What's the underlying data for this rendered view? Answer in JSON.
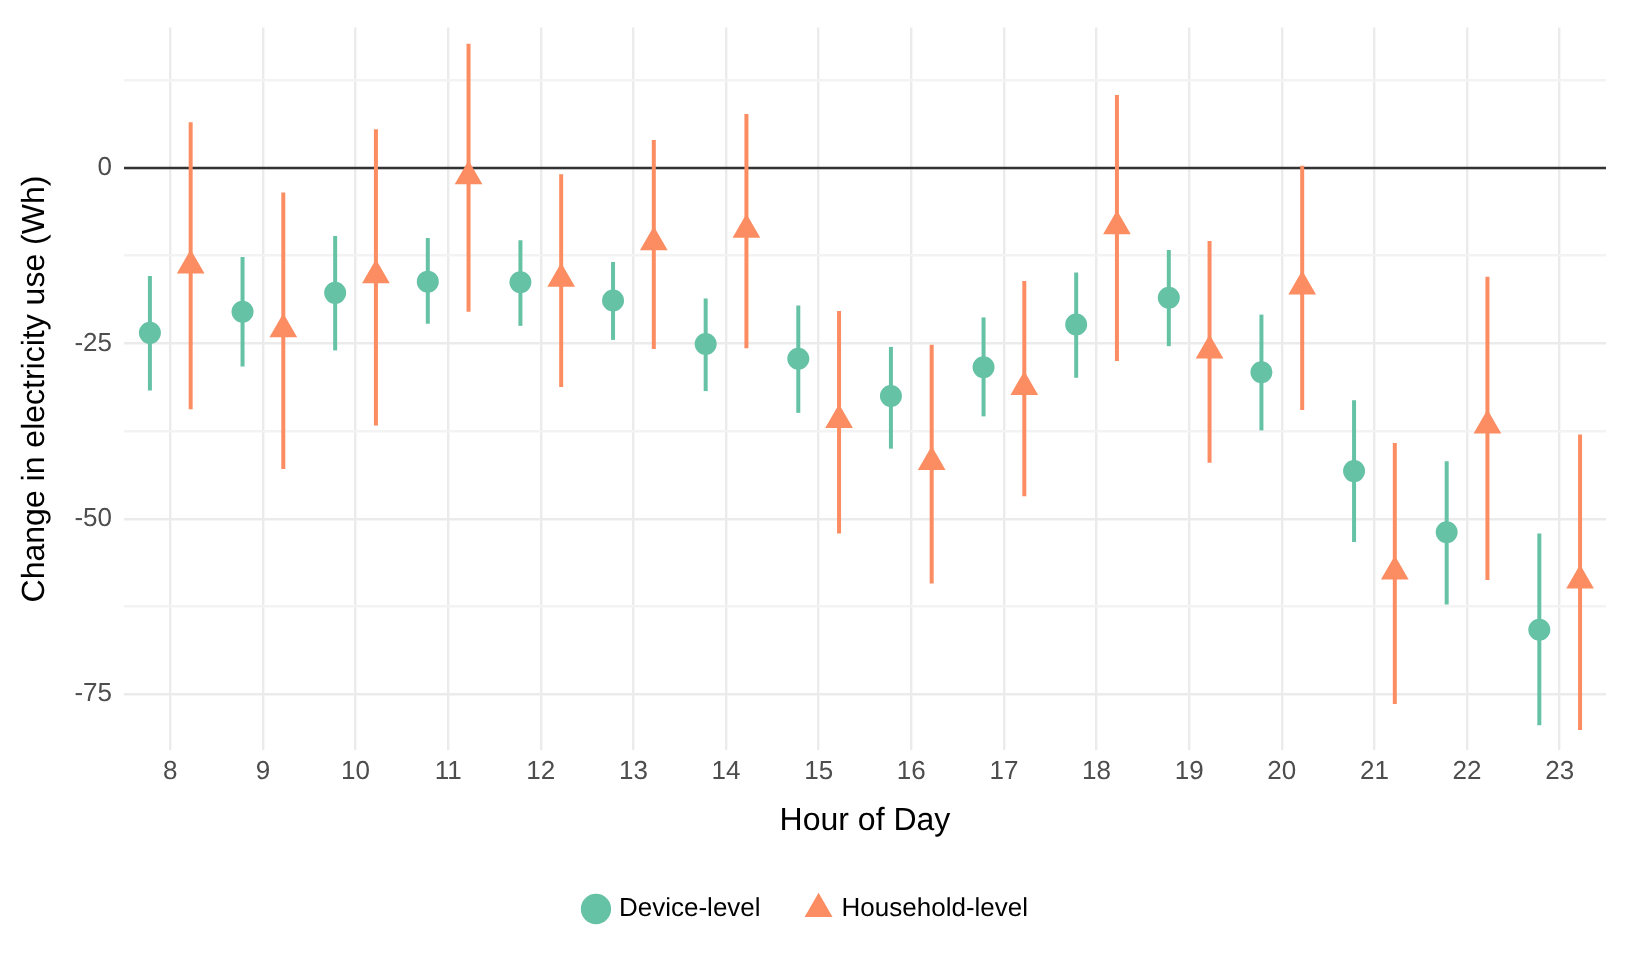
{
  "chart_data": {
    "type": "scatter",
    "xlabel": "Hour of Day",
    "ylabel": "Change in electricity use (Wh)",
    "categories": [
      "8",
      "9",
      "10",
      "11",
      "12",
      "13",
      "14",
      "15",
      "16",
      "17",
      "18",
      "19",
      "20",
      "21",
      "22",
      "23"
    ],
    "series": [
      {
        "name": "Device-level",
        "color": "#66c2a5",
        "marker": "circle",
        "values": [
          -23.5,
          -20.5,
          -17.8,
          -16.2,
          -16.3,
          -18.9,
          -25.1,
          -27.2,
          -32.5,
          -28.4,
          -22.3,
          -18.5,
          -29.1,
          -43.2,
          -51.9,
          -65.8
        ],
        "errors": [
          [
            -31.7,
            -15.4
          ],
          [
            -28.3,
            -12.7
          ],
          [
            -26,
            -9.7
          ],
          [
            -22.2,
            -10
          ],
          [
            -22.5,
            -10.3
          ],
          [
            -24.5,
            -13.4
          ],
          [
            -31.8,
            -18.6
          ],
          [
            -34.9,
            -19.6
          ],
          [
            -40,
            -25.5
          ],
          [
            -35.4,
            -21.3
          ],
          [
            -29.9,
            -14.9
          ],
          [
            -25.4,
            -11.7
          ],
          [
            -37.4,
            -20.9
          ],
          [
            -53.3,
            -33.1
          ],
          [
            -62.2,
            -41.8
          ],
          [
            -79.4,
            -52.1
          ]
        ]
      },
      {
        "name": "Household-level",
        "color": "#fc8d62",
        "marker": "triangle",
        "values": [
          -13.9,
          -23,
          -15.3,
          -1.2,
          -15.8,
          -10.6,
          -8.8,
          -35.9,
          -41.9,
          -31.2,
          -8.3,
          -26,
          -16.9,
          -57.5,
          -36.7,
          -58.8
        ],
        "errors": [
          [
            -34.4,
            6.5
          ],
          [
            -42.9,
            -3.5
          ],
          [
            -36.7,
            5.5
          ],
          [
            -20.5,
            17.7
          ],
          [
            -31.2,
            -0.9
          ],
          [
            -25.8,
            4
          ],
          [
            -25.7,
            7.7
          ],
          [
            -52.1,
            -20.4
          ],
          [
            -59.2,
            -25.2
          ],
          [
            -46.8,
            -16.1
          ],
          [
            -27.5,
            10.4
          ],
          [
            -42,
            -10.4
          ],
          [
            -34.5,
            0.3
          ],
          [
            -76.4,
            -39.2
          ],
          [
            -58.7,
            -15.5
          ],
          [
            -80.1,
            -38
          ]
        ]
      }
    ],
    "ylim": [
      -83,
      20
    ],
    "yticks": [
      {
        "value": -75,
        "label": "-75"
      },
      {
        "value": -62.5,
        "label": null
      },
      {
        "value": -50,
        "label": "-50"
      },
      {
        "value": -37.5,
        "label": null
      },
      {
        "value": -25,
        "label": "-25"
      },
      {
        "value": -12.5,
        "label": null
      },
      0,
      {
        "value": 12.5,
        "label": null
      }
    ],
    "ref_lines": [
      {
        "axis": "y",
        "value": 0,
        "color": "#333333"
      }
    ],
    "grid": true,
    "legend": "bottom"
  }
}
